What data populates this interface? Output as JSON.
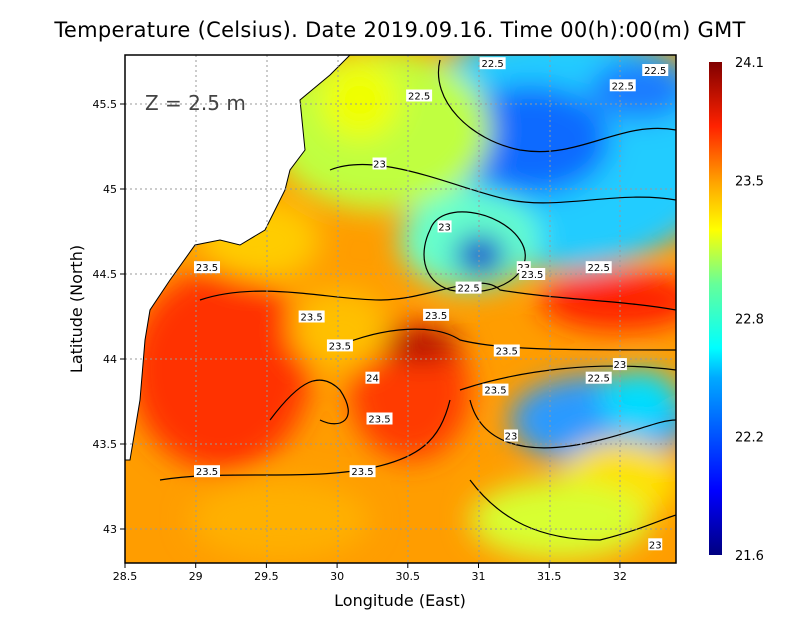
{
  "title": "Temperature (Celsius). Date 2019.09.16. Time 00(h):00(m) GMT",
  "depth_label": "Z = 2.5 m",
  "chart_data": {
    "type": "heatmap",
    "title": "Temperature (Celsius). Date 2019.09.16. Time 00(h):00(m) GMT",
    "xlabel": "Longitude (East)",
    "ylabel": "Latitude (North)",
    "xlim": [
      28.5,
      32.4
    ],
    "ylim": [
      42.8,
      45.8
    ],
    "x_ticks": [
      "28.5",
      "29",
      "29.5",
      "30",
      "30.5",
      "31",
      "31.5",
      "32"
    ],
    "y_ticks": [
      "43",
      "43.5",
      "44",
      "44.5",
      "45",
      "45.5"
    ],
    "grid": true,
    "colorbar": {
      "min": 21.6,
      "max": 24.1,
      "labels": [
        "24.1",
        "23.5",
        "22.8",
        "22.2",
        "21.6"
      ],
      "placement": "right"
    },
    "contour_labels": [
      {
        "text": "22.5",
        "lon": 31.1,
        "lat": 45.74
      },
      {
        "text": "22.5",
        "lon": 32.25,
        "lat": 45.7
      },
      {
        "text": "22.5",
        "lon": 32.02,
        "lat": 45.61
      },
      {
        "text": "22.5",
        "lon": 30.58,
        "lat": 45.55
      },
      {
        "text": "23",
        "lon": 30.3,
        "lat": 45.15
      },
      {
        "text": "23",
        "lon": 30.76,
        "lat": 44.78
      },
      {
        "text": "23",
        "lon": 31.32,
        "lat": 44.54
      },
      {
        "text": "23.5",
        "lon": 31.38,
        "lat": 44.5
      },
      {
        "text": "22.5",
        "lon": 31.85,
        "lat": 44.54
      },
      {
        "text": "22.5",
        "lon": 30.93,
        "lat": 44.42
      },
      {
        "text": "23.5",
        "lon": 29.08,
        "lat": 44.54
      },
      {
        "text": "23.5",
        "lon": 29.82,
        "lat": 44.25
      },
      {
        "text": "23.5",
        "lon": 30.7,
        "lat": 44.26
      },
      {
        "text": "23.5",
        "lon": 30.02,
        "lat": 44.08
      },
      {
        "text": "24",
        "lon": 30.25,
        "lat": 43.89
      },
      {
        "text": "23.5",
        "lon": 31.2,
        "lat": 44.05
      },
      {
        "text": "23",
        "lon": 32.0,
        "lat": 43.97
      },
      {
        "text": "22.5",
        "lon": 31.85,
        "lat": 43.89
      },
      {
        "text": "23.5",
        "lon": 31.12,
        "lat": 43.82
      },
      {
        "text": "23.5",
        "lon": 30.3,
        "lat": 43.65
      },
      {
        "text": "23",
        "lon": 31.23,
        "lat": 43.55
      },
      {
        "text": "23.5",
        "lon": 29.08,
        "lat": 43.34
      },
      {
        "text": "23.5",
        "lon": 30.18,
        "lat": 43.34
      },
      {
        "text": "23",
        "lon": 32.25,
        "lat": 42.91
      }
    ]
  }
}
